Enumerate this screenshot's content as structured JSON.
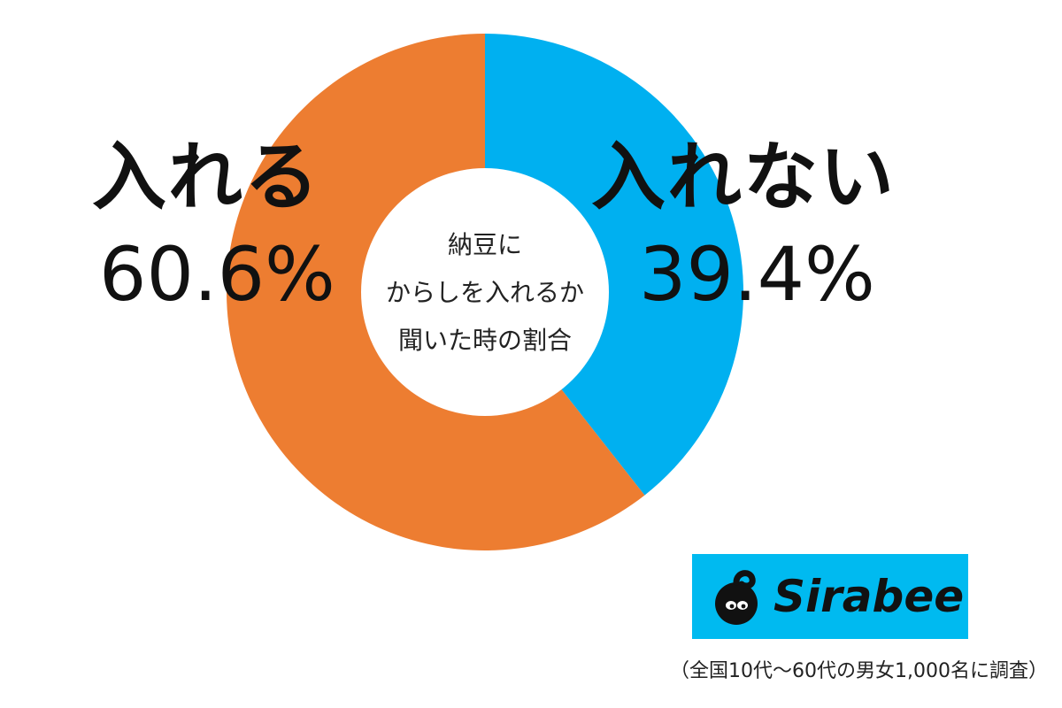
{
  "chart_data": {
    "type": "pie",
    "donut": true,
    "center_text": [
      "納豆に",
      "からしを入れるか",
      "聞いた時の割合"
    ],
    "slices": [
      {
        "label": "入れない",
        "value": 39.4,
        "value_label": "39.4%",
        "color": "#00b0f0"
      },
      {
        "label": "入れる",
        "value": 60.6,
        "value_label": "60.6%",
        "color": "#ed7d31"
      }
    ],
    "start_angle": "top",
    "direction": "clockwise"
  },
  "brand": {
    "name": "Sirabee",
    "color": "#00baf0",
    "icon": "sirabee-mascot-icon"
  },
  "footnote": "（全国10代〜60代の男女1,000名に調査）"
}
